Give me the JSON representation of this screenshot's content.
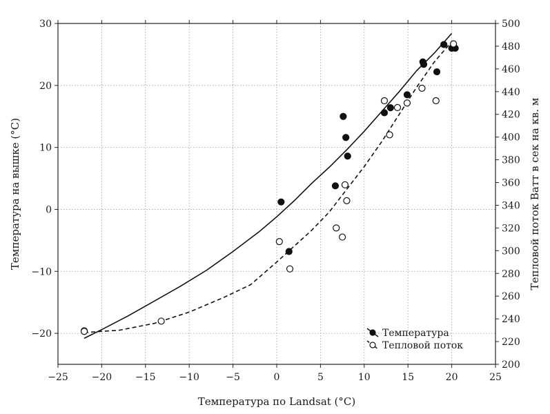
{
  "chart_data": {
    "type": "scatter",
    "xlabel": "Температура по Landsat (°C)",
    "ylabel_left": "Температура на вышке (°C)",
    "ylabel_right": "Тепловой поток Ватт в сек на кв. м",
    "xlim": [
      -25,
      25
    ],
    "ylim_left": [
      -25,
      30
    ],
    "ylim_right": [
      200,
      500
    ],
    "x_ticks": [
      -25,
      -20,
      -15,
      -10,
      -5,
      0,
      5,
      10,
      15,
      20,
      25
    ],
    "y_left_ticks": [
      -20,
      -10,
      0,
      10,
      20,
      30
    ],
    "y_right_ticks": [
      200,
      220,
      240,
      260,
      280,
      300,
      320,
      340,
      360,
      380,
      400,
      420,
      440,
      460,
      480,
      500
    ],
    "grid": true,
    "legend_position": "bottom-right",
    "series": [
      {
        "name": "Температура",
        "axis": "left",
        "marker": "filled-circle",
        "line_style": "solid",
        "points": [
          [
            -22.0,
            -19.6
          ],
          [
            0.5,
            1.2
          ],
          [
            1.4,
            -6.8
          ],
          [
            6.7,
            3.8
          ],
          [
            7.6,
            15.0
          ],
          [
            7.9,
            11.6
          ],
          [
            8.1,
            8.6
          ],
          [
            12.3,
            15.6
          ],
          [
            13.0,
            16.4
          ],
          [
            14.9,
            18.5
          ],
          [
            16.7,
            23.8
          ],
          [
            16.8,
            23.4
          ],
          [
            18.3,
            22.2
          ],
          [
            19.1,
            26.6
          ],
          [
            20.0,
            26.0
          ],
          [
            20.4,
            26.0
          ]
        ],
        "fit": [
          [
            -22,
            -20.8
          ],
          [
            -20,
            -19.4
          ],
          [
            -17,
            -17.2
          ],
          [
            -14,
            -14.8
          ],
          [
            -11,
            -12.4
          ],
          [
            -8,
            -9.8
          ],
          [
            -5,
            -6.8
          ],
          [
            -2,
            -3.6
          ],
          [
            0,
            -1.2
          ],
          [
            2,
            1.4
          ],
          [
            4,
            4.2
          ],
          [
            6,
            6.8
          ],
          [
            8,
            9.6
          ],
          [
            10,
            12.6
          ],
          [
            12,
            15.8
          ],
          [
            14,
            19.0
          ],
          [
            16,
            22.4
          ],
          [
            18,
            25.2
          ],
          [
            20,
            28.4
          ]
        ]
      },
      {
        "name": "Тепловой поток",
        "axis": "right",
        "marker": "open-circle",
        "line_style": "dashed",
        "points": [
          [
            -22.0,
            229
          ],
          [
            -13.2,
            238
          ],
          [
            0.3,
            308
          ],
          [
            1.5,
            284
          ],
          [
            6.8,
            320
          ],
          [
            7.5,
            312
          ],
          [
            7.8,
            358
          ],
          [
            8.0,
            344
          ],
          [
            12.3,
            432
          ],
          [
            12.9,
            402
          ],
          [
            13.8,
            426
          ],
          [
            14.9,
            430
          ],
          [
            16.6,
            443
          ],
          [
            18.2,
            432
          ],
          [
            20.2,
            482
          ]
        ],
        "fit": [
          [
            -22,
            228
          ],
          [
            -18,
            230
          ],
          [
            -14,
            236
          ],
          [
            -10,
            246
          ],
          [
            -6,
            259
          ],
          [
            -3,
            270
          ],
          [
            0,
            290
          ],
          [
            2,
            304
          ],
          [
            4,
            318
          ],
          [
            6,
            334
          ],
          [
            8,
            354
          ],
          [
            10,
            374
          ],
          [
            12,
            396
          ],
          [
            14,
            420
          ],
          [
            16,
            444
          ],
          [
            18,
            466
          ],
          [
            20,
            484
          ]
        ]
      }
    ]
  }
}
